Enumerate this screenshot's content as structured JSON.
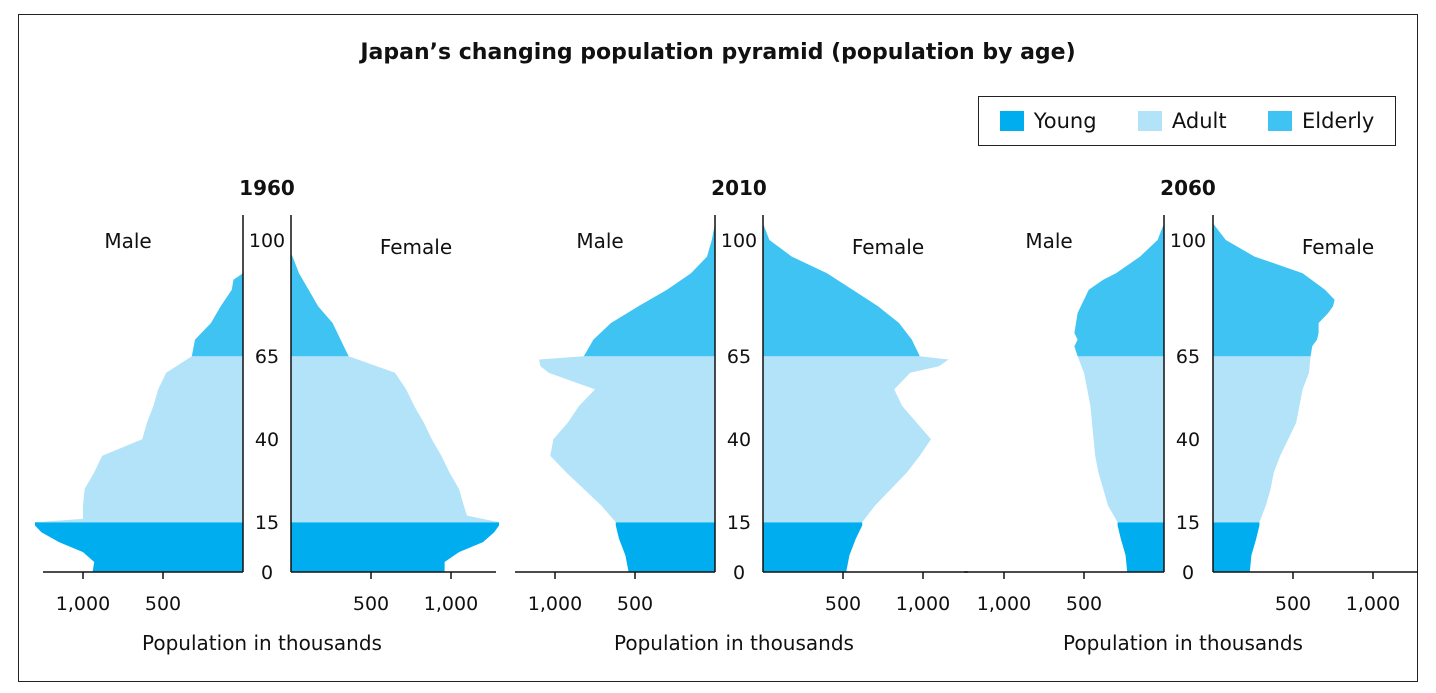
{
  "chart_data": {
    "type": "population-pyramid",
    "title": "Japan’s changing population pyramid (population by age)",
    "legend": [
      {
        "label": "Young",
        "color": "#00aeef"
      },
      {
        "label": "Adult",
        "color": "#b3e3f9"
      },
      {
        "label": "Elderly",
        "color": "#3ec3f3"
      }
    ],
    "legend_position": "top-right",
    "age_ticks": [
      0,
      15,
      40,
      65,
      100
    ],
    "x_ticks_male": [
      "1,000",
      "500"
    ],
    "x_ticks_female": [
      "500",
      "1,000"
    ],
    "male_label": "Male",
    "female_label": "Female",
    "xlabel": "Population in thousands",
    "panels": [
      {
        "year": "1960",
        "male": [
          [
            0,
            940
          ],
          [
            3,
            930
          ],
          [
            6,
            1000
          ],
          [
            9,
            1150
          ],
          [
            12,
            1260
          ],
          [
            14,
            1300
          ],
          [
            15,
            1300
          ],
          [
            16,
            1000
          ],
          [
            20,
            1000
          ],
          [
            25,
            990
          ],
          [
            30,
            930
          ],
          [
            35,
            880
          ],
          [
            40,
            630
          ],
          [
            45,
            600
          ],
          [
            50,
            560
          ],
          [
            55,
            530
          ],
          [
            60,
            480
          ],
          [
            65,
            320
          ],
          [
            70,
            300
          ],
          [
            75,
            200
          ],
          [
            80,
            140
          ],
          [
            85,
            70
          ],
          [
            88,
            60
          ],
          [
            90,
            0
          ]
        ],
        "female": [
          [
            0,
            960
          ],
          [
            3,
            960
          ],
          [
            6,
            1050
          ],
          [
            9,
            1200
          ],
          [
            12,
            1270
          ],
          [
            14,
            1300
          ],
          [
            15,
            1300
          ],
          [
            17,
            1100
          ],
          [
            20,
            1080
          ],
          [
            25,
            1050
          ],
          [
            30,
            990
          ],
          [
            35,
            940
          ],
          [
            40,
            880
          ],
          [
            45,
            830
          ],
          [
            50,
            770
          ],
          [
            55,
            720
          ],
          [
            60,
            650
          ],
          [
            65,
            360
          ],
          [
            70,
            310
          ],
          [
            75,
            260
          ],
          [
            80,
            170
          ],
          [
            85,
            110
          ],
          [
            90,
            50
          ],
          [
            95,
            10
          ],
          [
            96,
            0
          ]
        ],
        "male_scale_ref": 0
      },
      {
        "year": "2010",
        "male": [
          [
            0,
            540
          ],
          [
            5,
            560
          ],
          [
            10,
            600
          ],
          [
            14,
            620
          ],
          [
            15,
            620
          ],
          [
            20,
            710
          ],
          [
            25,
            820
          ],
          [
            30,
            930
          ],
          [
            35,
            1030
          ],
          [
            40,
            1010
          ],
          [
            45,
            920
          ],
          [
            50,
            850
          ],
          [
            55,
            750
          ],
          [
            60,
            1040
          ],
          [
            62,
            1090
          ],
          [
            64,
            1100
          ],
          [
            65,
            820
          ],
          [
            70,
            760
          ],
          [
            75,
            650
          ],
          [
            80,
            480
          ],
          [
            85,
            300
          ],
          [
            90,
            150
          ],
          [
            95,
            50
          ],
          [
            100,
            20
          ],
          [
            105,
            0
          ]
        ],
        "female": [
          [
            0,
            520
          ],
          [
            5,
            540
          ],
          [
            10,
            580
          ],
          [
            14,
            620
          ],
          [
            15,
            620
          ],
          [
            20,
            700
          ],
          [
            25,
            800
          ],
          [
            30,
            900
          ],
          [
            35,
            980
          ],
          [
            40,
            1050
          ],
          [
            45,
            960
          ],
          [
            50,
            870
          ],
          [
            55,
            820
          ],
          [
            60,
            920
          ],
          [
            62,
            1100
          ],
          [
            64,
            1160
          ],
          [
            65,
            980
          ],
          [
            70,
            930
          ],
          [
            75,
            850
          ],
          [
            80,
            720
          ],
          [
            85,
            560
          ],
          [
            90,
            400
          ],
          [
            95,
            180
          ],
          [
            100,
            40
          ],
          [
            105,
            0
          ]
        ]
      },
      {
        "year": "2060",
        "male": [
          [
            0,
            230
          ],
          [
            5,
            240
          ],
          [
            10,
            270
          ],
          [
            14,
            290
          ],
          [
            15,
            290
          ],
          [
            20,
            350
          ],
          [
            25,
            380
          ],
          [
            30,
            410
          ],
          [
            35,
            430
          ],
          [
            40,
            440
          ],
          [
            45,
            450
          ],
          [
            50,
            460
          ],
          [
            55,
            480
          ],
          [
            60,
            500
          ],
          [
            65,
            540
          ],
          [
            68,
            560
          ],
          [
            70,
            540
          ],
          [
            72,
            560
          ],
          [
            75,
            550
          ],
          [
            78,
            540
          ],
          [
            80,
            520
          ],
          [
            85,
            470
          ],
          [
            88,
            380
          ],
          [
            90,
            300
          ],
          [
            95,
            150
          ],
          [
            100,
            40
          ],
          [
            105,
            0
          ]
        ],
        "female": [
          [
            0,
            230
          ],
          [
            5,
            240
          ],
          [
            10,
            270
          ],
          [
            14,
            290
          ],
          [
            15,
            290
          ],
          [
            20,
            330
          ],
          [
            25,
            360
          ],
          [
            30,
            380
          ],
          [
            35,
            420
          ],
          [
            40,
            470
          ],
          [
            45,
            520
          ],
          [
            50,
            540
          ],
          [
            55,
            560
          ],
          [
            60,
            600
          ],
          [
            65,
            610
          ],
          [
            68,
            620
          ],
          [
            70,
            650
          ],
          [
            72,
            660
          ],
          [
            75,
            660
          ],
          [
            78,
            720
          ],
          [
            80,
            750
          ],
          [
            82,
            760
          ],
          [
            85,
            700
          ],
          [
            90,
            560
          ],
          [
            95,
            260
          ],
          [
            100,
            80
          ],
          [
            105,
            0
          ]
        ]
      }
    ]
  }
}
